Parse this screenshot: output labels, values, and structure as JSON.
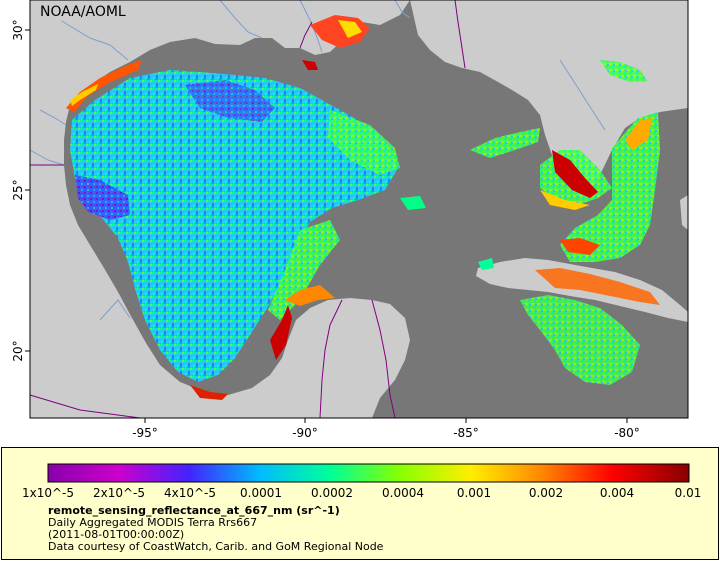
{
  "map": {
    "credit": "NOAA/AOML",
    "latitude_ticks": [
      "30°",
      "25°",
      "20°"
    ],
    "longitude_ticks": [
      "-95°",
      "-90°",
      "-85°",
      "-80°"
    ],
    "colors": {
      "land": "#cccccc",
      "ocean_no_data": "#777777",
      "rivers": "#7f9fcc",
      "borders": "#800080"
    }
  },
  "legend": {
    "colorbar_ticks": [
      "1x10^-5",
      "2x10^-5",
      "4x10^-5",
      "0.0001",
      "0.0002",
      "0.0004",
      "0.001",
      "0.002",
      "0.004",
      "0.01"
    ],
    "colorbar_colors": [
      "#8800aa",
      "#cc00cc",
      "#4422ff",
      "#00bbff",
      "#00ff99",
      "#88ff00",
      "#ffee00",
      "#ff8800",
      "#ff0000",
      "#880000"
    ],
    "title": "remote_sensing_reflectance_at_667_nm (sr^-1)",
    "lines": [
      "Daily Aggregated MODIS Terra Rrs667",
      "(2011-08-01T00:00:00Z)",
      "Data courtesy of CoastWatch, Carib. and GoM Regional Node"
    ]
  }
}
